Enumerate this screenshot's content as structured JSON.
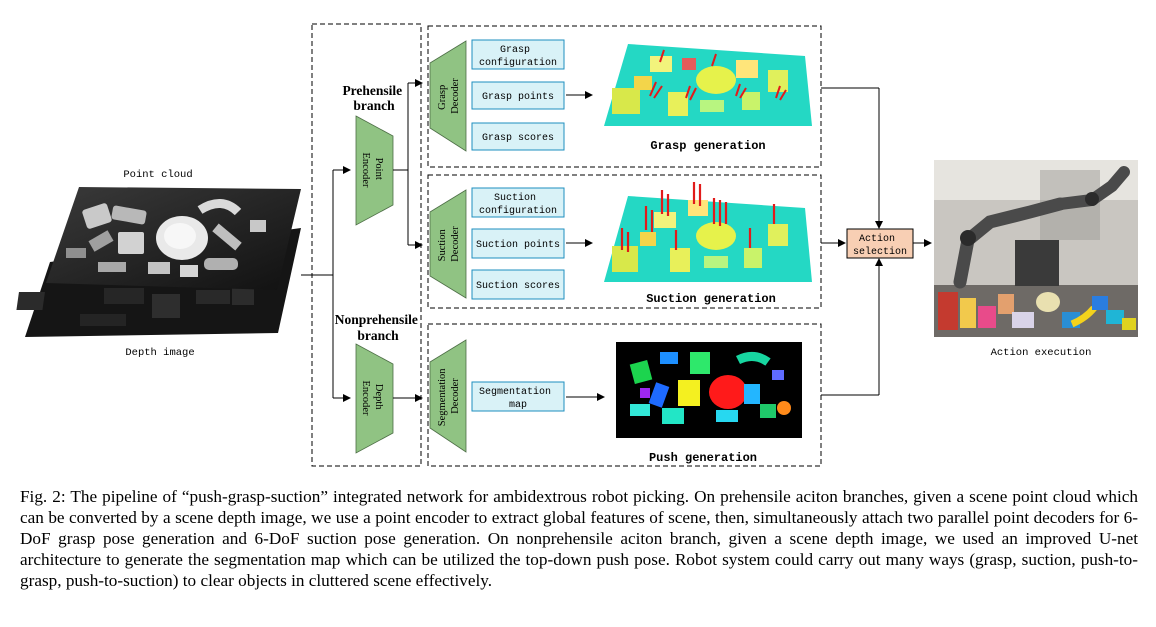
{
  "inputs": {
    "point_cloud": "Point cloud",
    "depth_image": "Depth image"
  },
  "branches": {
    "prehensile": [
      "Prehensile",
      "branch"
    ],
    "nonprehensile": [
      "Nonprehensile",
      "branch"
    ]
  },
  "encoders": {
    "point": [
      "Point",
      "Encoder"
    ],
    "depth": [
      "Depth",
      "Encoder"
    ]
  },
  "decoders": {
    "grasp": [
      "Grasp",
      "Decoder"
    ],
    "suction": [
      "Suction",
      "Decoder"
    ],
    "segmentation": [
      "Segmentation",
      "Decoder"
    ]
  },
  "outputs": {
    "grasp": [
      [
        "Grasp",
        "configuration"
      ],
      [
        "Grasp points"
      ],
      [
        "Grasp scores"
      ]
    ],
    "suction": [
      [
        "Suction",
        "configuration"
      ],
      [
        "Suction points"
      ],
      [
        "Suction scores"
      ]
    ],
    "segmentation": [
      [
        "Segmentation",
        "map"
      ]
    ]
  },
  "generation": {
    "grasp": "Grasp generation",
    "suction": "Suction generation",
    "push": "Push generation"
  },
  "action_selection": [
    "Action",
    "selection"
  ],
  "action_execution": "Action execution",
  "colors": {
    "encoder": "#90c383",
    "output_box": "#d9f2f7",
    "output_border": "#1e8fbf",
    "action_box": "#f8cfb4",
    "scene_floor": "#24d8c4"
  },
  "caption": "Fig. 2: The pipeline of “push-grasp-suction” integrated network for ambidextrous robot picking. On prehensile aciton branches, given a scene point cloud which can be converted by a scene depth image, we use a point encoder to extract global features of scene, then, simultaneously attach two parallel point decoders for 6-DoF grasp pose generation and 6-DoF suction pose generation. On nonprehensile aciton branch, given a scene depth image, we used an improved U-net architecture to generate the segmentation map which can be utilized the top-down push pose. Robot system could carry out many ways (grasp, suction, push-to-grasp, push-to-suction) to clear objects in cluttered scene effectively."
}
